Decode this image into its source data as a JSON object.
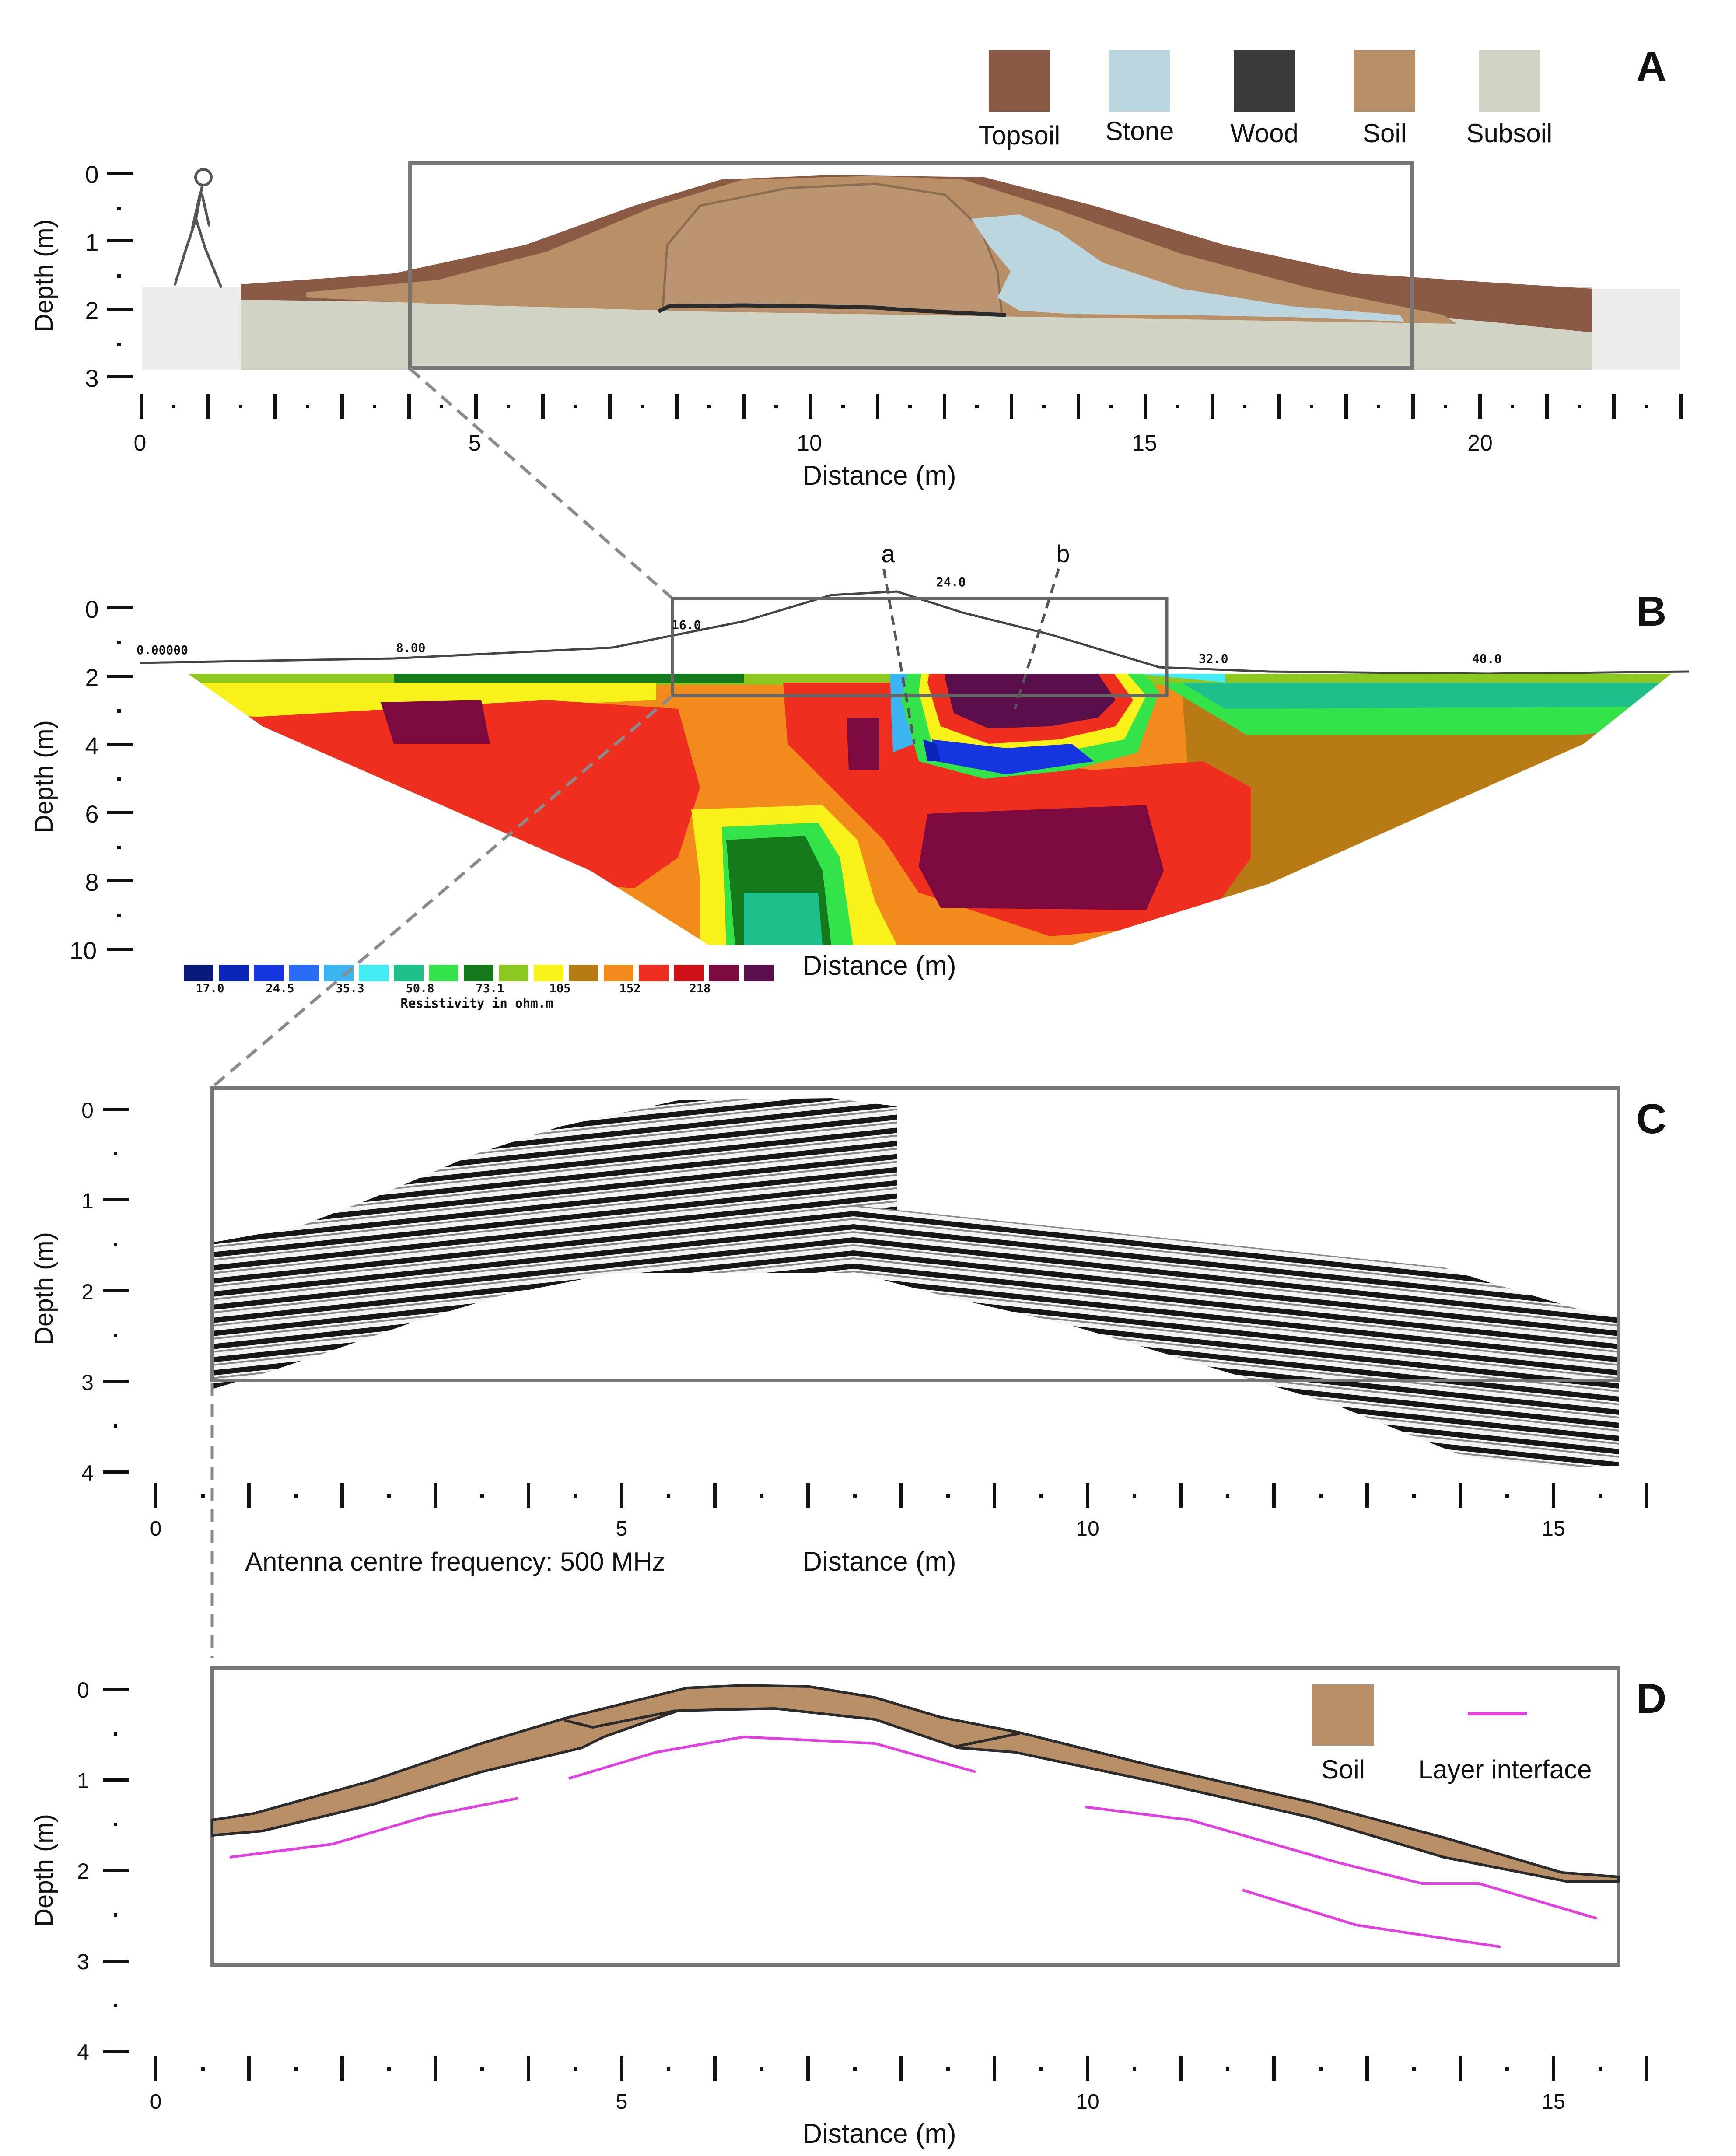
{
  "panels": {
    "a": {
      "letter": "A",
      "legend": [
        {
          "label": "Topsoil",
          "color": "#8a5a45"
        },
        {
          "label": "Stone",
          "color": "#bcd6e0"
        },
        {
          "label": "Wood",
          "color": "#3a3a3a"
        },
        {
          "label": "Soil",
          "color": "#b88f66"
        },
        {
          "label": "Subsoil",
          "color": "#d1d3c4"
        }
      ],
      "y_axis": {
        "label": "Depth (m)",
        "ticks": [
          "0",
          "1",
          "2",
          "3"
        ]
      },
      "x_axis": {
        "label": "Distance (m)",
        "ticks": [
          "0",
          "5",
          "10",
          "15",
          "20"
        ]
      }
    },
    "b": {
      "letter": "B",
      "profile_markers": [
        "a",
        "b"
      ],
      "top_ticks": [
        "0.00000",
        "8.00",
        "16.0",
        "24.0",
        "32.0",
        "40.0"
      ],
      "y_axis": {
        "label": "Depth (m)",
        "ticks": [
          "0",
          "2",
          "4",
          "6",
          "8",
          "10"
        ]
      },
      "x_axis_label": "Distance (m)",
      "scale_values": [
        "17.0",
        "24.5",
        "35.3",
        "50.8",
        "73.1",
        "105",
        "152",
        "218"
      ],
      "scale_colors": [
        "#0a1a7a",
        "#0b24b8",
        "#1535e0",
        "#2a6cf5",
        "#3db4f2",
        "#44ecf5",
        "#1fbf8c",
        "#34e34a",
        "#157a1c",
        "#8dc820",
        "#f8f21a",
        "#b87a14",
        "#f28a1c",
        "#ee2e1e",
        "#cc1016",
        "#7c0a3e",
        "#5a0f4a"
      ],
      "scale_title": "Resistivity in ohm.m"
    },
    "c": {
      "letter": "C",
      "y_axis": {
        "label": "Depth (m)",
        "ticks": [
          "0",
          "1",
          "2",
          "3",
          "4"
        ]
      },
      "x_axis": {
        "label": "Distance (m)",
        "ticks": [
          "0",
          "5",
          "10",
          "15"
        ]
      },
      "caption": "Antenna centre frequency: 500 MHz"
    },
    "d": {
      "letter": "D",
      "legend": [
        {
          "label": "Soil",
          "color": "#b88f66"
        },
        {
          "label": "Layer interface",
          "color": "#e040e0"
        }
      ],
      "y_axis": {
        "label": "Depth (m)",
        "ticks": [
          "0",
          "1",
          "2",
          "3",
          "4"
        ]
      },
      "x_axis": {
        "label": "Distance (m)",
        "ticks": [
          "0",
          "5",
          "10",
          "15"
        ]
      }
    }
  }
}
